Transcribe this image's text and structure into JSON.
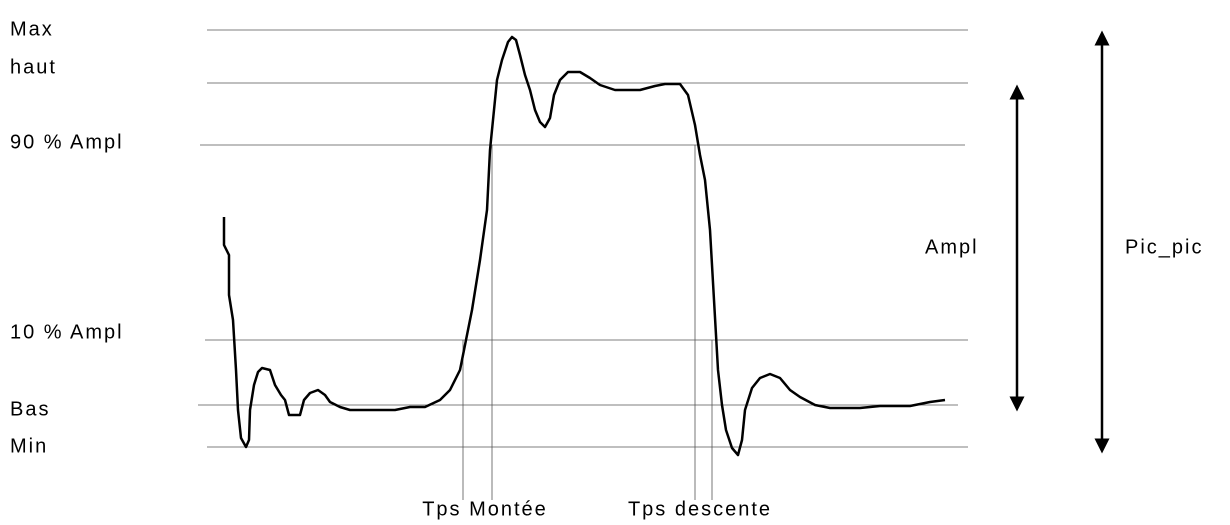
{
  "levels": {
    "max": "Max",
    "haut": "haut",
    "ampl90": "90 % Ampl",
    "ampl10": "10 % Ampl",
    "bas": "Bas",
    "min": "Min"
  },
  "measures": {
    "ampl": "Ampl",
    "pic_pic": "Pic_pic"
  },
  "times": {
    "rise": "Tps Montée",
    "fall": "Tps descente"
  }
}
